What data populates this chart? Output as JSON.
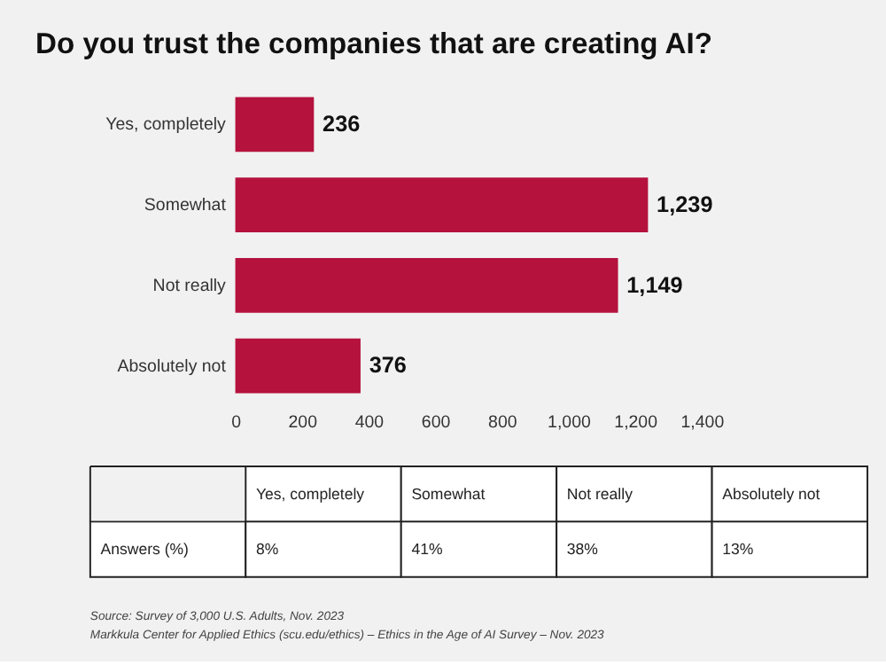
{
  "chart_data": [
    {
      "type": "bar",
      "orientation": "horizontal",
      "title": "Do you trust the companies that are creating AI?",
      "categories": [
        "Yes, completely",
        "Somewhat",
        "Not really",
        "Absolutely not"
      ],
      "values": [
        236,
        1239,
        1149,
        376
      ],
      "value_labels": [
        "236",
        "1,239",
        "1,149",
        "376"
      ],
      "color": "#b5123e",
      "xlim": [
        0,
        1400
      ],
      "xticks": [
        0,
        200,
        400,
        600,
        800,
        {
          "value": 1000,
          "label": "1,000"
        },
        {
          "value": 1200,
          "label": "1,200"
        },
        {
          "value": 1400,
          "label": "1,400"
        }
      ],
      "grid": false
    },
    {
      "type": "other",
      "categories": [
        "Yes, completely",
        "Somewhat",
        "Not really",
        "Absolutely not"
      ],
      "ylabel": "Answers (%)",
      "value_labels": [
        "8%",
        "41%",
        "38%",
        "13%"
      ],
      "annotations": [
        "Source: Survey of 3,000 U.S. Adults, Nov. 2023",
        "Markkula Center for Applied Ethics  (scu.edu/ethics) –  Ethics in the Age of AI Survey – Nov. 2023"
      ]
    }
  ]
}
